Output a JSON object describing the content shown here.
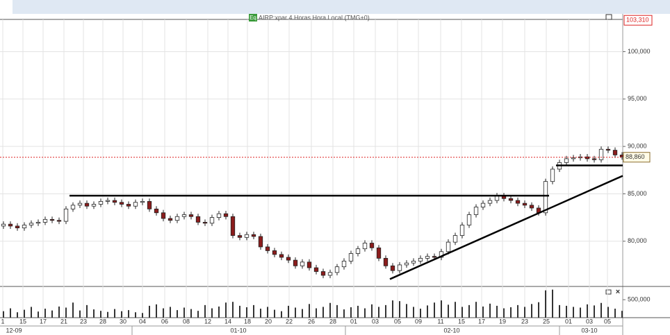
{
  "chart_data": {
    "type": "candlestick",
    "badge": "Eq",
    "title": "AIRP:xpar 4 Horas Hora Local (TMG+0)",
    "open": [
      81.6,
      81.8,
      81.6,
      81.4,
      81.7,
      81.9,
      82.0,
      82.3,
      82.2,
      82.1,
      83.4,
      83.8,
      84.0,
      83.7,
      83.9,
      84.2,
      84.3,
      84.1,
      83.9,
      83.7,
      84.1,
      84.2,
      83.4,
      83.0,
      82.4,
      82.2,
      82.6,
      82.8,
      82.6,
      82.0,
      81.9,
      82.5,
      82.9,
      82.6,
      80.6,
      80.4,
      80.7,
      80.5,
      79.4,
      79.0,
      78.6,
      78.3,
      78.0,
      77.4,
      77.8,
      77.2,
      76.8,
      76.4,
      76.7,
      77.3,
      77.9,
      78.7,
      79.2,
      79.8,
      79.3,
      78.2,
      77.4,
      76.9,
      77.5,
      77.7,
      77.9,
      78.2,
      78.4,
      78.3,
      78.9,
      79.9,
      80.6,
      81.7,
      82.8,
      83.6,
      84.0,
      84.3,
      84.8,
      84.5,
      84.3,
      84.0,
      83.8,
      83.5,
      83.0,
      86.3,
      87.6,
      88.3,
      88.7,
      88.8,
      88.9,
      88.7,
      88.6,
      89.7,
      89.6,
      89.1
    ],
    "high": [
      82.1,
      82.1,
      81.9,
      82.0,
      82.2,
      82.3,
      82.6,
      82.6,
      82.5,
      83.7,
      84.1,
      84.3,
      84.3,
      84.2,
      84.5,
      84.6,
      84.6,
      84.4,
      84.2,
      84.4,
      84.5,
      84.5,
      83.7,
      83.3,
      82.7,
      82.9,
      83.1,
      83.1,
      82.9,
      82.3,
      82.8,
      83.2,
      83.2,
      82.9,
      80.9,
      81.0,
      81.0,
      80.8,
      79.7,
      79.3,
      78.9,
      78.6,
      78.3,
      78.1,
      78.1,
      77.5,
      77.1,
      77.0,
      77.6,
      78.2,
      79.0,
      79.5,
      80.1,
      80.1,
      79.6,
      78.5,
      77.7,
      77.8,
      78.0,
      78.2,
      78.5,
      78.7,
      78.7,
      79.2,
      80.2,
      80.9,
      82.0,
      83.1,
      83.9,
      84.3,
      84.6,
      85.1,
      85.1,
      84.8,
      84.6,
      84.3,
      84.1,
      83.8,
      86.6,
      87.9,
      88.6,
      89.0,
      89.1,
      89.2,
      89.2,
      89.0,
      90.0,
      90.0,
      89.9,
      89.4
    ],
    "low": [
      81.3,
      81.3,
      81.1,
      81.1,
      81.4,
      81.6,
      81.7,
      81.9,
      81.8,
      81.8,
      83.1,
      83.5,
      83.4,
      83.4,
      83.6,
      83.9,
      83.8,
      83.6,
      83.4,
      83.4,
      83.8,
      83.1,
      82.7,
      82.1,
      81.9,
      81.9,
      82.3,
      82.3,
      81.7,
      81.6,
      81.6,
      82.2,
      82.3,
      80.3,
      80.1,
      80.1,
      80.2,
      79.1,
      78.7,
      78.3,
      78.0,
      77.7,
      77.1,
      77.1,
      76.9,
      76.5,
      76.1,
      76.1,
      76.4,
      77.0,
      77.6,
      78.4,
      78.9,
      79.0,
      77.9,
      77.1,
      76.6,
      76.6,
      77.2,
      77.4,
      77.6,
      77.9,
      78.0,
      78.0,
      78.6,
      79.6,
      80.3,
      81.4,
      82.5,
      83.3,
      83.7,
      84.0,
      84.2,
      84.0,
      83.7,
      83.5,
      83.2,
      82.7,
      82.7,
      86.0,
      87.3,
      88.0,
      88.4,
      88.5,
      88.4,
      88.3,
      88.3,
      89.3,
      88.8,
      88.6
    ],
    "close": [
      81.8,
      81.6,
      81.4,
      81.7,
      81.9,
      82.0,
      82.3,
      82.2,
      82.1,
      83.4,
      83.8,
      84.0,
      83.7,
      83.9,
      84.2,
      84.3,
      84.1,
      83.9,
      83.7,
      84.1,
      84.2,
      83.4,
      83.0,
      82.4,
      82.2,
      82.6,
      82.8,
      82.6,
      82.0,
      81.9,
      82.5,
      82.9,
      82.6,
      80.6,
      80.4,
      80.7,
      80.5,
      79.4,
      79.0,
      78.6,
      78.3,
      78.0,
      77.4,
      77.8,
      77.2,
      76.8,
      76.4,
      76.7,
      77.3,
      77.9,
      78.7,
      79.2,
      79.8,
      79.3,
      78.2,
      77.4,
      76.9,
      77.5,
      77.7,
      77.9,
      78.2,
      78.4,
      78.3,
      78.9,
      79.9,
      80.6,
      81.7,
      82.8,
      83.6,
      84.0,
      84.3,
      84.8,
      84.5,
      84.3,
      84.0,
      83.8,
      83.5,
      83.0,
      86.3,
      87.6,
      88.3,
      88.7,
      88.8,
      88.9,
      88.7,
      88.6,
      89.7,
      89.6,
      89.1,
      88.9
    ],
    "volume": [
      180000,
      260000,
      150000,
      220000,
      300000,
      170000,
      250000,
      200000,
      310000,
      280000,
      420000,
      200000,
      350000,
      230000,
      190000,
      160000,
      240000,
      180000,
      210000,
      150000,
      130000,
      330000,
      370000,
      260000,
      300000,
      210000,
      280000,
      240000,
      190000,
      350000,
      260000,
      310000,
      420000,
      440000,
      330000,
      290000,
      350000,
      250000,
      300000,
      220000,
      180000,
      330000,
      280000,
      240000,
      380000,
      260000,
      300000,
      410000,
      350000,
      230000,
      290000,
      330000,
      260000,
      370000,
      300000,
      350000,
      480000,
      460000,
      380000,
      300000,
      250000,
      340000,
      420000,
      480000,
      360000,
      440000,
      300000,
      350000,
      440000,
      310000,
      390000,
      330000,
      260000,
      290000,
      350000,
      300000,
      380000,
      430000,
      760000,
      780000,
      350000,
      330000,
      300000,
      280000,
      370000,
      340000,
      410000,
      300000,
      250000,
      190000
    ],
    "up_color": "#ffffff",
    "down_color": "#8b1c1c",
    "volume_color": "#333333",
    "xlim": [
      -0.5,
      89.1
    ],
    "xticks": [
      {
        "value": -0.1,
        "label": "1"
      },
      {
        "value": 2.8,
        "label": "15"
      },
      {
        "value": 5.7,
        "label": "17"
      },
      {
        "value": 8.7,
        "label": "21"
      },
      {
        "value": 11.5,
        "label": "23"
      },
      {
        "value": 14.3,
        "label": "28"
      },
      {
        "value": 17.2,
        "label": "30"
      },
      {
        "value": 20.0,
        "label": "04"
      },
      {
        "value": 23.2,
        "label": "06"
      },
      {
        "value": 26.3,
        "label": "08"
      },
      {
        "value": 29.4,
        "label": "12"
      },
      {
        "value": 32.3,
        "label": "14"
      },
      {
        "value": 35.1,
        "label": "18"
      },
      {
        "value": 38.1,
        "label": "20"
      },
      {
        "value": 41.1,
        "label": "22"
      },
      {
        "value": 44.3,
        "label": "26"
      },
      {
        "value": 47.4,
        "label": "28"
      },
      {
        "value": 50.4,
        "label": "01"
      },
      {
        "value": 53.5,
        "label": "03"
      },
      {
        "value": 56.7,
        "label": "05"
      },
      {
        "value": 59.7,
        "label": "09"
      },
      {
        "value": 62.9,
        "label": "11"
      },
      {
        "value": 65.9,
        "label": "15"
      },
      {
        "value": 68.8,
        "label": "17"
      },
      {
        "value": 71.8,
        "label": "19"
      },
      {
        "value": 75.0,
        "label": "23"
      },
      {
        "value": 78.1,
        "label": "25"
      },
      {
        "value": 81.3,
        "label": "01"
      },
      {
        "value": 84.3,
        "label": "03"
      },
      {
        "value": 86.9,
        "label": "05"
      }
    ],
    "month_ticks": [
      {
        "value": 1.5,
        "label": "12-09"
      },
      {
        "value": 33.8,
        "label": "01-10"
      },
      {
        "value": 64.5,
        "label": "02-10"
      },
      {
        "value": 84.3,
        "label": "03-10"
      }
    ],
    "ylim": [
      75.3,
      103.4
    ],
    "yticks": [
      {
        "value": 80,
        "label": "80,000"
      },
      {
        "value": 85,
        "label": "85,000"
      },
      {
        "value": 90,
        "label": "90,000"
      },
      {
        "value": 95,
        "label": "95,000"
      },
      {
        "value": 100,
        "label": "100,000"
      }
    ],
    "y2lim": [
      0,
      830000
    ],
    "y2ticks": [
      {
        "value": 500000,
        "label": "500,000"
      }
    ],
    "last_price": {
      "value": 88.86,
      "label": "88,860"
    },
    "top_price": {
      "value": 103.31,
      "label": "103,310"
    },
    "trendlines": [
      {
        "x": [
          9.5,
          78.5
        ],
        "y": [
          84.8,
          84.8
        ]
      },
      {
        "x": [
          79.5,
          89.1
        ],
        "y": [
          88.0,
          88.0
        ]
      },
      {
        "x": [
          55.6,
          89.1
        ],
        "y": [
          76.0,
          86.9
        ]
      }
    ],
    "grid": true
  }
}
